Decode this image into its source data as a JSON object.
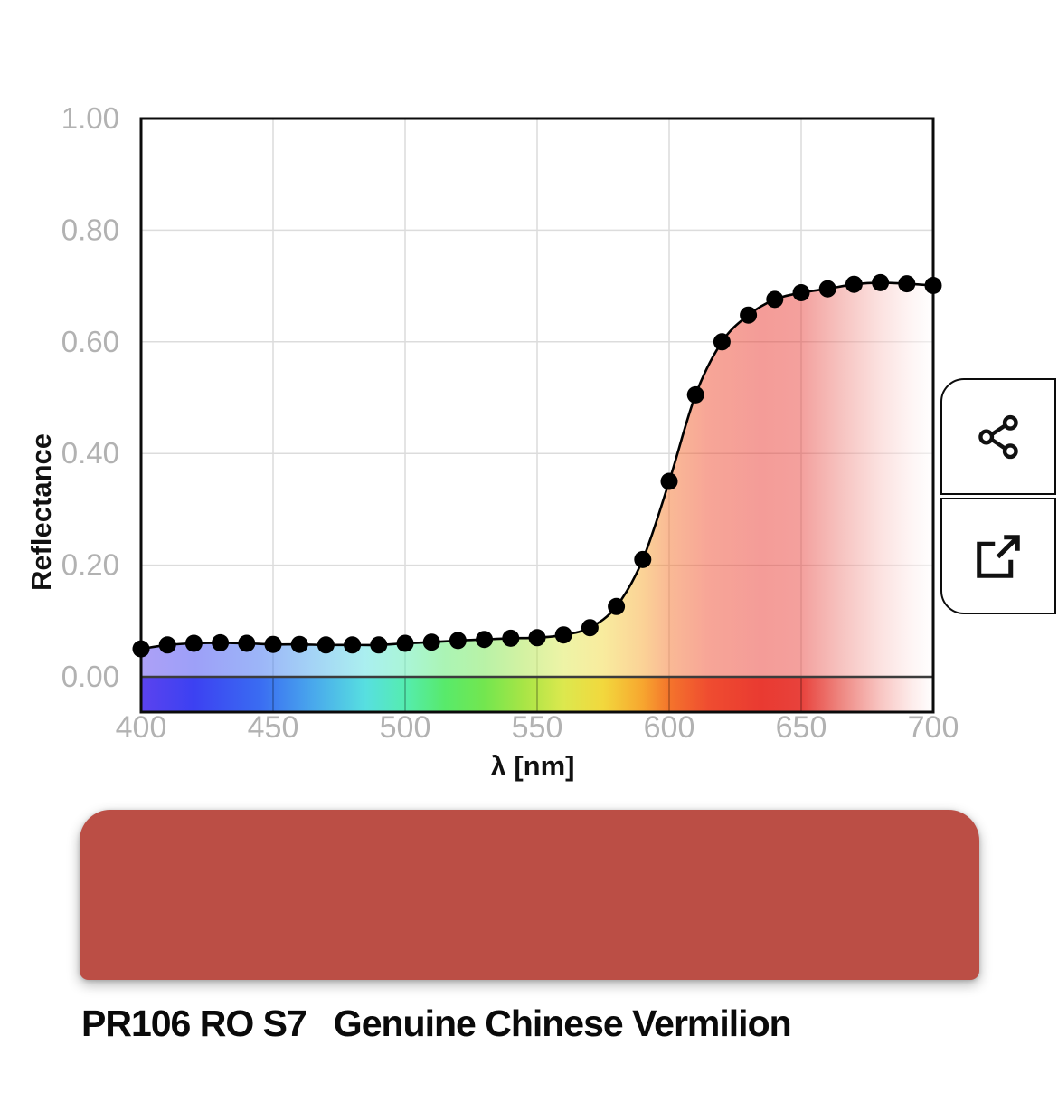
{
  "pigment": {
    "code": "PR106 RO S7",
    "name": "Genuine Chinese Vermilion",
    "swatch_color": "#bb4e45"
  },
  "icons": {
    "share": "share-nodes-icon",
    "open_external": "external-link-icon"
  },
  "chart_data": {
    "type": "line",
    "title": "",
    "xlabel": "λ [nm]",
    "ylabel": "Reflectance",
    "xlim": [
      400,
      700
    ],
    "ylim": [
      0,
      1
    ],
    "grid": true,
    "legend": false,
    "line_color": "#000000",
    "marker": "circle",
    "marker_color": "#000000",
    "tick_label_color": "#b2b2b2",
    "grid_color": "#dcdcdc",
    "area_fill": "visible-spectrum-gradient",
    "area_opacity": 0.5,
    "spectrum_strip_below_axis": true,
    "x_ticks": [
      400,
      450,
      500,
      550,
      600,
      650,
      700
    ],
    "y_ticks": [
      0,
      0.2,
      0.4,
      0.6,
      0.8,
      1
    ],
    "y_tick_labels": [
      "0.00",
      "0.20",
      "0.40",
      "0.60",
      "0.80",
      "1.00"
    ],
    "x": [
      400,
      410,
      420,
      430,
      440,
      450,
      460,
      470,
      480,
      490,
      500,
      510,
      520,
      530,
      540,
      550,
      560,
      570,
      580,
      590,
      600,
      610,
      620,
      630,
      640,
      650,
      660,
      670,
      680,
      690,
      700
    ],
    "series": [
      {
        "name": "Reflectance",
        "values": [
          0.05,
          0.057,
          0.06,
          0.061,
          0.06,
          0.058,
          0.058,
          0.057,
          0.057,
          0.057,
          0.06,
          0.062,
          0.065,
          0.067,
          0.069,
          0.07,
          0.075,
          0.088,
          0.126,
          0.21,
          0.35,
          0.505,
          0.6,
          0.648,
          0.676,
          0.688,
          0.695,
          0.703,
          0.706,
          0.704,
          0.701
        ]
      }
    ],
    "spectrum_gradient_stops": [
      {
        "nm": 400,
        "color": "#5b43ee"
      },
      {
        "nm": 420,
        "color": "#3c41f2"
      },
      {
        "nm": 445,
        "color": "#3a6cf2"
      },
      {
        "nm": 465,
        "color": "#49a8ec"
      },
      {
        "nm": 485,
        "color": "#57dfe0"
      },
      {
        "nm": 500,
        "color": "#55ecb0"
      },
      {
        "nm": 515,
        "color": "#58ea6b"
      },
      {
        "nm": 530,
        "color": "#73e64f"
      },
      {
        "nm": 545,
        "color": "#a8e546"
      },
      {
        "nm": 560,
        "color": "#dce84e"
      },
      {
        "nm": 575,
        "color": "#f2d83d"
      },
      {
        "nm": 590,
        "color": "#f7a62f"
      },
      {
        "nm": 600,
        "color": "#f4742c"
      },
      {
        "nm": 615,
        "color": "#ef4c30"
      },
      {
        "nm": 635,
        "color": "#e93a31"
      },
      {
        "nm": 650,
        "color": "#e8423c"
      },
      {
        "nm": 665,
        "color": "#ee8781"
      },
      {
        "nm": 680,
        "color": "#f8c5c2"
      },
      {
        "nm": 692,
        "color": "#fdeceb"
      },
      {
        "nm": 700,
        "color": "#ffffff"
      }
    ]
  }
}
